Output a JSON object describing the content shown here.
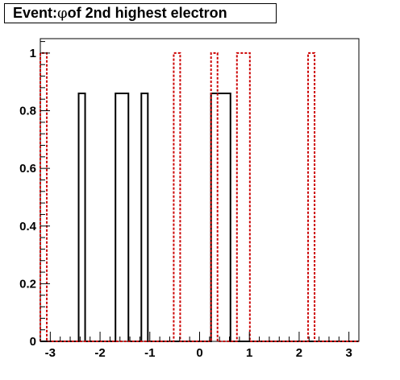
{
  "title": {
    "prefix": "Event: ",
    "symbol": "φ",
    "suffix": " of 2nd highest electron"
  },
  "chart_data": {
    "type": "histogram",
    "title": "Event: φ of 2nd highest electron",
    "xlabel": "",
    "ylabel": "",
    "xlim": [
      -3.2,
      3.2
    ],
    "ylim": [
      0,
      1.05
    ],
    "xticks": [
      {
        "value": -3,
        "label": "-3"
      },
      {
        "value": -2,
        "label": "-2"
      },
      {
        "value": -1,
        "label": "-1"
      },
      {
        "value": 0,
        "label": "0"
      },
      {
        "value": 1,
        "label": "1"
      },
      {
        "value": 2,
        "label": "2"
      },
      {
        "value": 3,
        "label": "3"
      }
    ],
    "yticks": [
      {
        "value": 0,
        "label": "0"
      },
      {
        "value": 0.2,
        "label": "0.2"
      },
      {
        "value": 0.4,
        "label": "0.4"
      },
      {
        "value": 0.6,
        "label": "0.6"
      },
      {
        "value": 0.8,
        "label": "0.8"
      },
      {
        "value": 1,
        "label": "1"
      }
    ],
    "grid": false,
    "series": [
      {
        "color": "#000000",
        "dashed": false,
        "bins": [
          {
            "x0": -2.43,
            "x1": -2.3,
            "y": 0.86
          },
          {
            "x0": -1.69,
            "x1": -1.43,
            "y": 0.86
          },
          {
            "x0": -1.17,
            "x1": -1.04,
            "y": 0.86
          },
          {
            "x0": 0.23,
            "x1": 0.62,
            "y": 0.86
          }
        ]
      },
      {
        "color": "#cc0000",
        "dashed": true,
        "bins": [
          {
            "x0": -3.2,
            "x1": -3.07,
            "y": 1.0
          },
          {
            "x0": -0.52,
            "x1": -0.39,
            "y": 1.0
          },
          {
            "x0": 0.23,
            "x1": 0.36,
            "y": 1.0
          },
          {
            "x0": 0.75,
            "x1": 1.01,
            "y": 1.0
          },
          {
            "x0": 2.18,
            "x1": 2.31,
            "y": 1.0
          }
        ]
      }
    ]
  }
}
